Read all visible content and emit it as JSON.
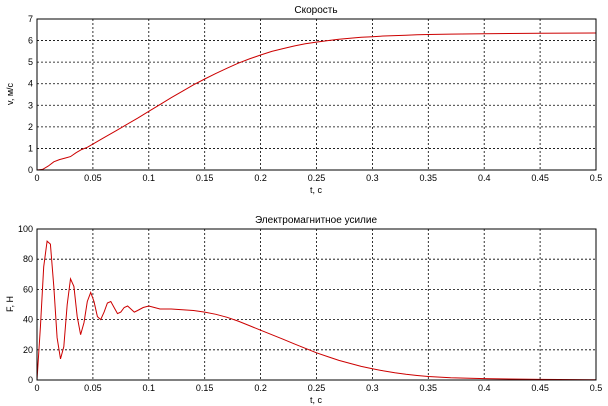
{
  "chart_data": [
    {
      "type": "line",
      "title": "Скорость",
      "xlabel": "t, c",
      "ylabel": "v, м/с",
      "xlim": [
        0,
        0.5
      ],
      "ylim": [
        0,
        7
      ],
      "xticks": [
        "0",
        "0.05",
        "0.1",
        "0.15",
        "0.2",
        "0.25",
        "0.3",
        "0.35",
        "0.4",
        "0.45",
        "0.5"
      ],
      "yticks": [
        "0",
        "1",
        "2",
        "3",
        "4",
        "5",
        "6",
        "7"
      ],
      "grid": true,
      "series": [
        {
          "color": "#cc0000",
          "x": [
            0,
            0.005,
            0.01,
            0.015,
            0.02,
            0.025,
            0.03,
            0.035,
            0.04,
            0.045,
            0.05,
            0.06,
            0.07,
            0.08,
            0.09,
            0.1,
            0.11,
            0.12,
            0.13,
            0.14,
            0.15,
            0.16,
            0.17,
            0.18,
            0.19,
            0.2,
            0.21,
            0.22,
            0.23,
            0.24,
            0.25,
            0.26,
            0.27,
            0.28,
            0.29,
            0.3,
            0.31,
            0.32,
            0.33,
            0.34,
            0.35,
            0.37,
            0.4,
            0.45,
            0.5
          ],
          "y": [
            0,
            0.03,
            0.18,
            0.38,
            0.48,
            0.55,
            0.62,
            0.8,
            0.95,
            1.05,
            1.2,
            1.5,
            1.8,
            2.1,
            2.4,
            2.72,
            3.03,
            3.35,
            3.65,
            3.95,
            4.22,
            4.48,
            4.72,
            4.95,
            5.15,
            5.33,
            5.5,
            5.63,
            5.75,
            5.85,
            5.93,
            6.0,
            6.06,
            6.11,
            6.15,
            6.18,
            6.21,
            6.23,
            6.25,
            6.27,
            6.28,
            6.3,
            6.32,
            6.34,
            6.35
          ]
        }
      ]
    },
    {
      "type": "line",
      "title": "Электромагнитное усилие",
      "xlabel": "t, c",
      "ylabel": "F, H",
      "xlim": [
        0,
        0.5
      ],
      "ylim": [
        0,
        100
      ],
      "xticks": [
        "0",
        "0.05",
        "0.1",
        "0.15",
        "0.2",
        "0.25",
        "0.3",
        "0.35",
        "0.4",
        "0.45",
        "0.5"
      ],
      "yticks": [
        "0",
        "20",
        "40",
        "60",
        "80",
        "100"
      ],
      "grid": true,
      "series": [
        {
          "color": "#cc0000",
          "x": [
            0,
            0.003,
            0.006,
            0.009,
            0.012,
            0.015,
            0.018,
            0.021,
            0.024,
            0.027,
            0.03,
            0.033,
            0.036,
            0.039,
            0.042,
            0.045,
            0.048,
            0.051,
            0.054,
            0.057,
            0.06,
            0.063,
            0.066,
            0.069,
            0.072,
            0.075,
            0.078,
            0.081,
            0.084,
            0.087,
            0.09,
            0.095,
            0.1,
            0.105,
            0.11,
            0.12,
            0.13,
            0.14,
            0.15,
            0.16,
            0.17,
            0.18,
            0.19,
            0.2,
            0.21,
            0.22,
            0.23,
            0.24,
            0.25,
            0.26,
            0.27,
            0.28,
            0.29,
            0.3,
            0.31,
            0.32,
            0.33,
            0.34,
            0.35,
            0.37,
            0.4,
            0.45,
            0.5
          ],
          "y": [
            0,
            35,
            75,
            92,
            90,
            62,
            28,
            14,
            22,
            50,
            67,
            62,
            42,
            30,
            38,
            52,
            58,
            52,
            42,
            40,
            45,
            51,
            52,
            48,
            44,
            45,
            48,
            49,
            47,
            45,
            46,
            48,
            49,
            48,
            47,
            47,
            46.5,
            46,
            45,
            43.5,
            41.5,
            39,
            36,
            33,
            30,
            27,
            24,
            21,
            18,
            15.5,
            13,
            11,
            9,
            7.5,
            6,
            4.8,
            3.8,
            3,
            2.3,
            1.5,
            0.9,
            0.4,
            0.2
          ]
        }
      ]
    }
  ]
}
